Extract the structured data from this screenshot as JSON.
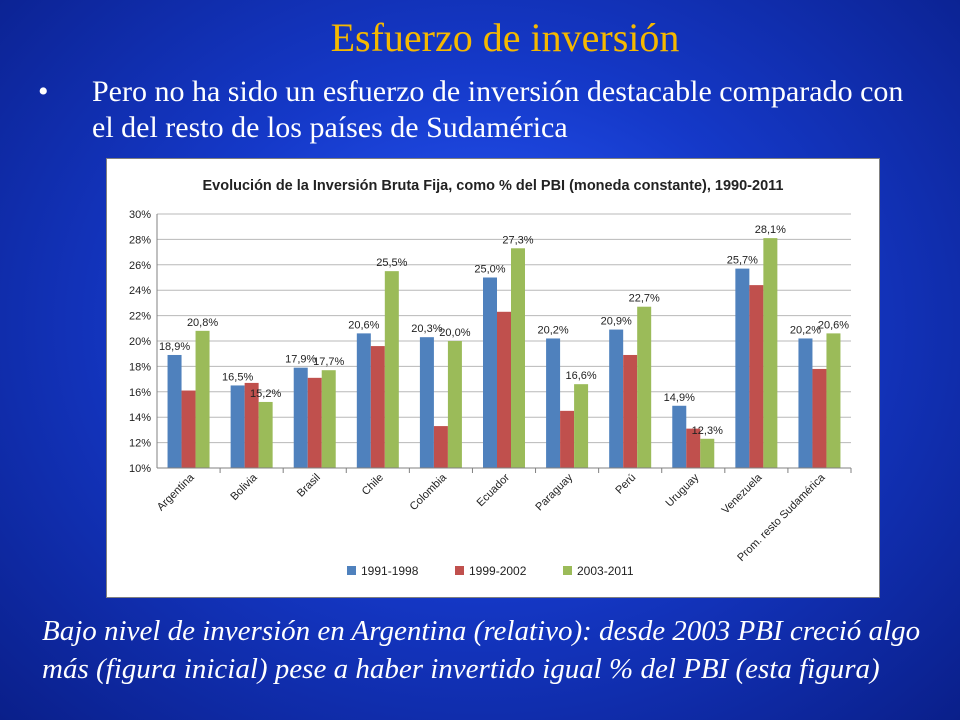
{
  "slide": {
    "title": "Esfuerzo de inversión",
    "bullet_symbol": "•",
    "bullet_text": "Pero no ha sido un esfuerzo de inversión destacable comparado con el del resto de los países de Sudamérica",
    "footer": "Bajo nivel de inversión en Argentina (relativo): desde 2003 PBI creció algo más (figura inicial) pese a haber invertido igual % del PBI (esta figura)"
  },
  "chart_data": {
    "type": "bar",
    "title": "Evolución de la Inversión Bruta Fija, como % del PBI (moneda constante), 1990-2011",
    "xlabel": "",
    "ylabel": "",
    "ylim": [
      10,
      30
    ],
    "y_tick_step": 2,
    "y_tick_suffix": "%",
    "grid": true,
    "legend_position": "bottom",
    "categories": [
      "Argentina",
      "Bolivia",
      "Brasil",
      "Chile",
      "Colombia",
      "Ecuador",
      "Paraguay",
      "Perú",
      "Uruguay",
      "Venezuela",
      "Prom. resto Sudamérica"
    ],
    "series": [
      {
        "name": "1991-1998",
        "color": "#4f81bd",
        "values": [
          18.9,
          16.5,
          17.9,
          20.6,
          20.3,
          25.0,
          20.2,
          20.9,
          14.9,
          25.7,
          20.2
        ]
      },
      {
        "name": "1999-2002",
        "color": "#c0504d",
        "values": [
          16.1,
          16.7,
          17.1,
          19.6,
          13.3,
          22.3,
          14.5,
          18.9,
          13.1,
          24.4,
          17.8
        ]
      },
      {
        "name": "2003-2011",
        "color": "#9bbb59",
        "values": [
          20.8,
          15.2,
          17.7,
          25.5,
          20.0,
          27.3,
          16.6,
          22.7,
          12.3,
          28.1,
          20.6
        ]
      }
    ],
    "data_labels": [
      {
        "series": 0,
        "category": 0,
        "text": "18,9%"
      },
      {
        "series": 2,
        "category": 0,
        "text": "20,8%"
      },
      {
        "series": 0,
        "category": 1,
        "text": "16,5%"
      },
      {
        "series": 2,
        "category": 1,
        "text": "15,2%"
      },
      {
        "series": 0,
        "category": 2,
        "text": "17,9%"
      },
      {
        "series": 2,
        "category": 2,
        "text": "17,7%"
      },
      {
        "series": 0,
        "category": 3,
        "text": "20,6%"
      },
      {
        "series": 2,
        "category": 3,
        "text": "25,5%"
      },
      {
        "series": 0,
        "category": 4,
        "text": "20,3%"
      },
      {
        "series": 2,
        "category": 4,
        "text": "20,0%"
      },
      {
        "series": 0,
        "category": 5,
        "text": "25,0%"
      },
      {
        "series": 2,
        "category": 5,
        "text": "27,3%"
      },
      {
        "series": 0,
        "category": 6,
        "text": "20,2%"
      },
      {
        "series": 2,
        "category": 6,
        "text": "16,6%"
      },
      {
        "series": 0,
        "category": 7,
        "text": "20,9%"
      },
      {
        "series": 2,
        "category": 7,
        "text": "22,7%"
      },
      {
        "series": 0,
        "category": 8,
        "text": "14,9%"
      },
      {
        "series": 2,
        "category": 8,
        "text": "12,3%"
      },
      {
        "series": 0,
        "category": 9,
        "text": "25,7%"
      },
      {
        "series": 2,
        "category": 9,
        "text": "28,1%"
      },
      {
        "series": 0,
        "category": 10,
        "text": "20,2%"
      },
      {
        "series": 2,
        "category": 10,
        "text": "20,6%"
      }
    ]
  }
}
